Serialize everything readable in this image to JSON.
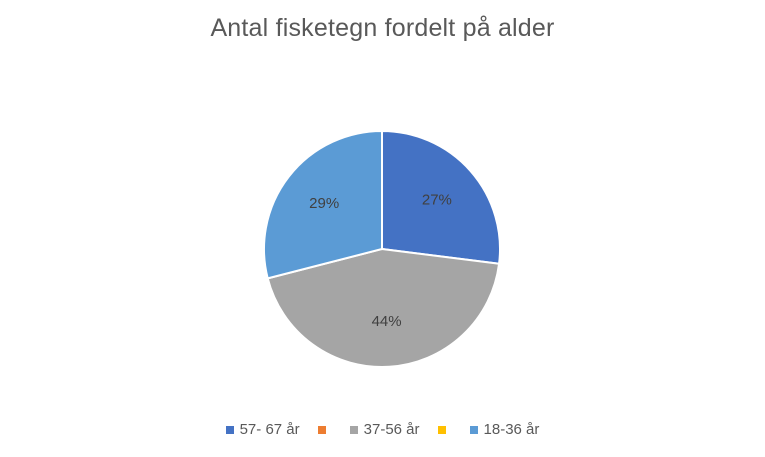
{
  "chart_data": {
    "type": "pie",
    "title": "Antal fisketegn fordelt på alder",
    "categories": [
      "57- 67 år",
      "",
      "37-56 år",
      "",
      "18-36 år"
    ],
    "values": [
      27,
      0,
      44,
      0,
      29
    ],
    "value_labels": [
      "27%",
      "",
      "44%",
      "",
      "29%"
    ],
    "colors": [
      "#4472C4",
      "#ED7D31",
      "#A5A5A5",
      "#FFC000",
      "#5B9BD5"
    ],
    "legend_position": "bottom",
    "slice_border_color": "#ffffff"
  }
}
